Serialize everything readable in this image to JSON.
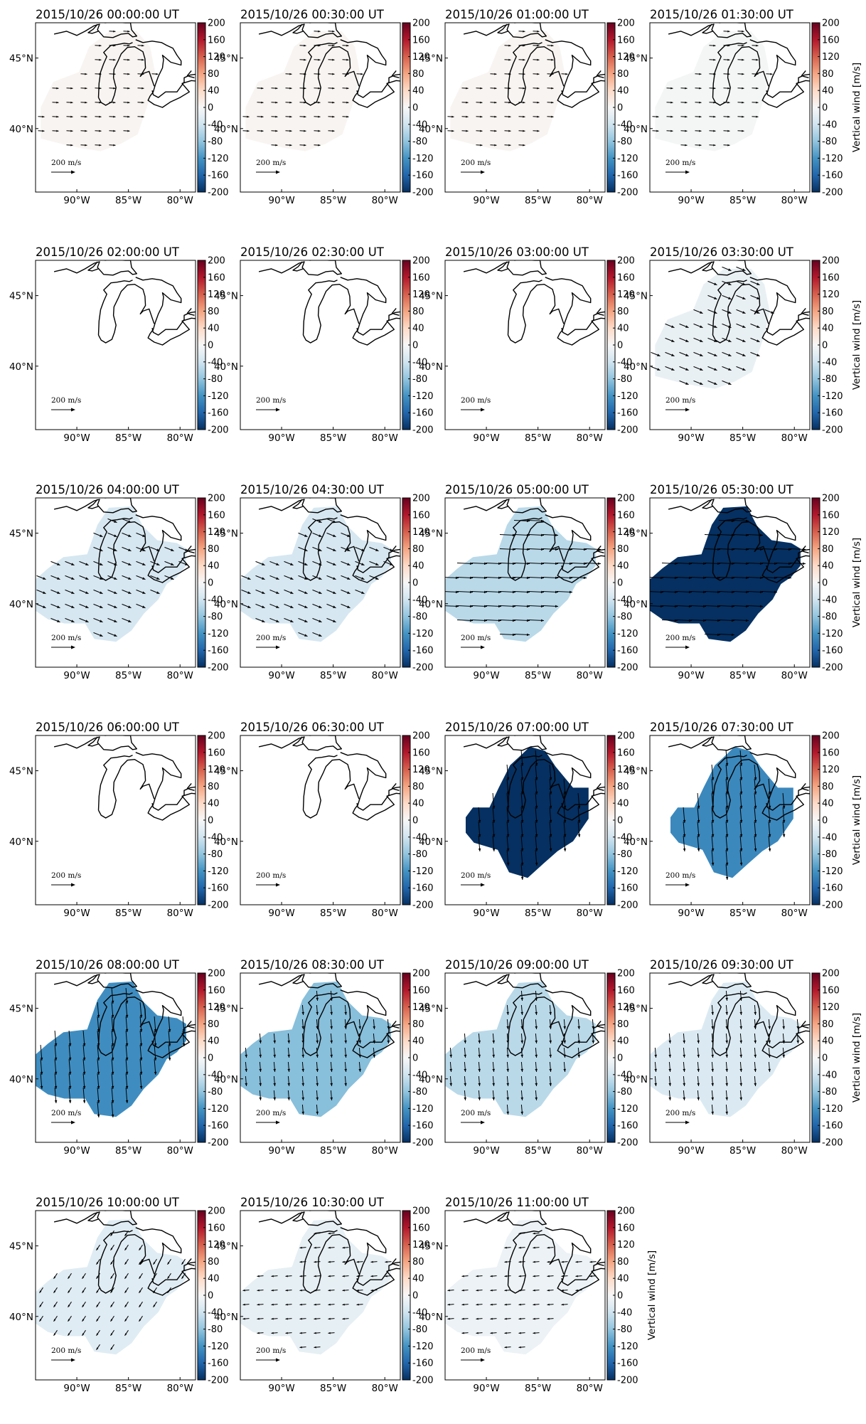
{
  "figure": {
    "colorbar_ticks": [
      "200",
      "160",
      "120",
      "80",
      "40",
      "0",
      "-40",
      "-80",
      "-120",
      "-160",
      "-200"
    ],
    "colorbar_label": "Vertical wind [m/s]",
    "x_ticks": [
      "90°W",
      "85°W",
      "80°W"
    ],
    "y_ticks": [
      "45°N",
      "40°N"
    ],
    "scale_label": "200 m/s"
  },
  "colors": {
    "colormap": "RdBu_r",
    "max_red": "#67001f",
    "mid_white": "#f7f7f7",
    "max_blue": "#053061",
    "coastline": "#000000",
    "axes": "#000000"
  },
  "chart_data": [
    {
      "type": "heatmap",
      "title": "2015/10/26 00:00:00 UT",
      "vertical_wind": 5,
      "horizontal_wind": {
        "direction": "east",
        "magnitude": "small"
      },
      "coverage": "partial",
      "clim": [
        -200,
        200
      ]
    },
    {
      "type": "heatmap",
      "title": "2015/10/26 00:30:00 UT",
      "vertical_wind": 5,
      "horizontal_wind": {
        "direction": "east",
        "magnitude": "small"
      },
      "coverage": "partial",
      "clim": [
        -200,
        200
      ]
    },
    {
      "type": "heatmap",
      "title": "2015/10/26 01:00:00 UT",
      "vertical_wind": 5,
      "horizontal_wind": {
        "direction": "east",
        "magnitude": "small"
      },
      "coverage": "partial",
      "clim": [
        -200,
        200
      ]
    },
    {
      "type": "heatmap",
      "title": "2015/10/26 01:30:00 UT",
      "vertical_wind": -3,
      "horizontal_wind": {
        "direction": "east",
        "magnitude": "small"
      },
      "coverage": "partial",
      "clim": [
        -200,
        200
      ],
      "colorbar_label": true
    },
    {
      "type": "heatmap",
      "title": "2015/10/26 02:00:00 UT",
      "vertical_wind": null,
      "coverage": "none",
      "clim": [
        -200,
        200
      ]
    },
    {
      "type": "heatmap",
      "title": "2015/10/26 02:30:00 UT",
      "vertical_wind": null,
      "coverage": "none",
      "clim": [
        -200,
        200
      ]
    },
    {
      "type": "heatmap",
      "title": "2015/10/26 03:00:00 UT",
      "vertical_wind": null,
      "coverage": "none",
      "clim": [
        -200,
        200
      ]
    },
    {
      "type": "heatmap",
      "title": "2015/10/26 03:30:00 UT",
      "vertical_wind": -15,
      "horizontal_wind": {
        "direction": "southeast",
        "magnitude": "medium"
      },
      "coverage": "partial",
      "clim": [
        -200,
        200
      ],
      "colorbar_label": true
    },
    {
      "type": "heatmap",
      "title": "2015/10/26 04:00:00 UT",
      "vertical_wind": -35,
      "horizontal_wind": {
        "direction": "southeast",
        "magnitude": "medium"
      },
      "coverage": "large",
      "clim": [
        -200,
        200
      ]
    },
    {
      "type": "heatmap",
      "title": "2015/10/26 04:30:00 UT",
      "vertical_wind": -35,
      "horizontal_wind": {
        "direction": "southeast",
        "magnitude": "medium"
      },
      "coverage": "large",
      "clim": [
        -200,
        200
      ]
    },
    {
      "type": "heatmap",
      "title": "2015/10/26 05:00:00 UT",
      "vertical_wind": -55,
      "horizontal_wind": {
        "direction": "east",
        "magnitude": "large"
      },
      "coverage": "large",
      "clim": [
        -200,
        200
      ]
    },
    {
      "type": "heatmap",
      "title": "2015/10/26 05:30:00 UT",
      "vertical_wind": -200,
      "horizontal_wind": {
        "direction": "east",
        "magnitude": "large"
      },
      "coverage": "large",
      "clim": [
        -200,
        200
      ],
      "colorbar_label": true
    },
    {
      "type": "heatmap",
      "title": "2015/10/26 06:00:00 UT",
      "vertical_wind": null,
      "coverage": "none",
      "clim": [
        -200,
        200
      ]
    },
    {
      "type": "heatmap",
      "title": "2015/10/26 06:30:00 UT",
      "vertical_wind": null,
      "coverage": "none",
      "clim": [
        -200,
        200
      ]
    },
    {
      "type": "heatmap",
      "title": "2015/10/26 07:00:00 UT",
      "vertical_wind": -200,
      "horizontal_wind": {
        "direction": "south",
        "magnitude": "large"
      },
      "coverage": "medium",
      "clim": [
        -200,
        200
      ]
    },
    {
      "type": "heatmap",
      "title": "2015/10/26 07:30:00 UT",
      "vertical_wind": -130,
      "horizontal_wind": {
        "direction": "south",
        "magnitude": "large"
      },
      "coverage": "medium",
      "clim": [
        -200,
        200
      ],
      "colorbar_label": true
    },
    {
      "type": "heatmap",
      "title": "2015/10/26 08:00:00 UT",
      "vertical_wind": -125,
      "horizontal_wind": {
        "direction": "south",
        "magnitude": "large"
      },
      "coverage": "large",
      "clim": [
        -200,
        200
      ]
    },
    {
      "type": "heatmap",
      "title": "2015/10/26 08:30:00 UT",
      "vertical_wind": -85,
      "horizontal_wind": {
        "direction": "south",
        "magnitude": "medium"
      },
      "coverage": "large",
      "clim": [
        -200,
        200
      ]
    },
    {
      "type": "heatmap",
      "title": "2015/10/26 09:00:00 UT",
      "vertical_wind": -55,
      "horizontal_wind": {
        "direction": "south",
        "magnitude": "medium"
      },
      "coverage": "large",
      "clim": [
        -200,
        200
      ]
    },
    {
      "type": "heatmap",
      "title": "2015/10/26 09:30:00 UT",
      "vertical_wind": -30,
      "horizontal_wind": {
        "direction": "south",
        "magnitude": "medium"
      },
      "coverage": "large",
      "clim": [
        -200,
        200
      ],
      "colorbar_label": true
    },
    {
      "type": "heatmap",
      "title": "2015/10/26 10:00:00 UT",
      "vertical_wind": -25,
      "horizontal_wind": {
        "direction": "southwest",
        "magnitude": "small"
      },
      "coverage": "large",
      "clim": [
        -200,
        200
      ]
    },
    {
      "type": "heatmap",
      "title": "2015/10/26 10:30:00 UT",
      "vertical_wind": -18,
      "horizontal_wind": {
        "direction": "west",
        "magnitude": "small"
      },
      "coverage": "large",
      "clim": [
        -200,
        200
      ]
    },
    {
      "type": "heatmap",
      "title": "2015/10/26 11:00:00 UT",
      "vertical_wind": -12,
      "horizontal_wind": {
        "direction": "west",
        "magnitude": "small"
      },
      "coverage": "large",
      "clim": [
        -200,
        200
      ],
      "colorbar_label": true
    }
  ]
}
